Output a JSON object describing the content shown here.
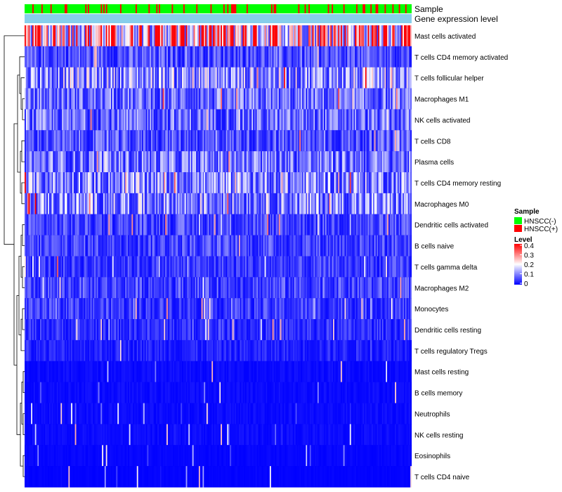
{
  "chart_data": {
    "type": "heatmap",
    "title": "",
    "annotations": {
      "sample_label": "Sample",
      "gene_label": "Gene expression level"
    },
    "rows": [
      {
        "name": "Mast cells activated",
        "mean": 0.3
      },
      {
        "name": "T cells CD4 memory activated",
        "mean": 0.07
      },
      {
        "name": "T cells follicular helper",
        "mean": 0.13
      },
      {
        "name": "Macrophages M1",
        "mean": 0.09
      },
      {
        "name": "NK cells activated",
        "mean": 0.09
      },
      {
        "name": "T cells CD8",
        "mean": 0.07
      },
      {
        "name": "Plasma cells",
        "mean": 0.1
      },
      {
        "name": "T cells CD4 memory resting",
        "mean": 0.12
      },
      {
        "name": "Macrophages M0",
        "mean": 0.12
      },
      {
        "name": "Dendritic cells activated",
        "mean": 0.06
      },
      {
        "name": "B cells naive",
        "mean": 0.06
      },
      {
        "name": "T cells gamma delta",
        "mean": 0.05
      },
      {
        "name": "Macrophages M2",
        "mean": 0.06
      },
      {
        "name": "Monocytes",
        "mean": 0.05
      },
      {
        "name": "Dendritic cells resting",
        "mean": 0.04
      },
      {
        "name": "T cells regulatory  Tregs",
        "mean": 0.03
      },
      {
        "name": "Mast cells resting",
        "mean": 0.01
      },
      {
        "name": "B cells memory",
        "mean": 0.01
      },
      {
        "name": "Neutrophils",
        "mean": 0.01
      },
      {
        "name": "NK cells resting",
        "mean": 0.01
      },
      {
        "name": "Eosinophils",
        "mean": 0.005
      },
      {
        "name": "T cells CD4 naive",
        "mean": 0.003
      }
    ],
    "n_samples": 300,
    "legend": {
      "sample_title": "Sample",
      "sample_entries": [
        {
          "label": "HNSCC(-)",
          "color": "#00ff00"
        },
        {
          "label": "HNSCC(+)",
          "color": "#ff0000"
        }
      ],
      "level_title": "Level",
      "level_ticks": [
        "0.4",
        "0.3",
        "0.2",
        "0.1",
        "0"
      ],
      "level_range": [
        0,
        0.4
      ],
      "placement": "right"
    },
    "colors": {
      "low": "#0000ff",
      "mid": "#ffffff",
      "high": "#ff0000",
      "gene_bar": "#87ceeb",
      "negative": "#00ff00",
      "positive": "#ff0000"
    }
  }
}
